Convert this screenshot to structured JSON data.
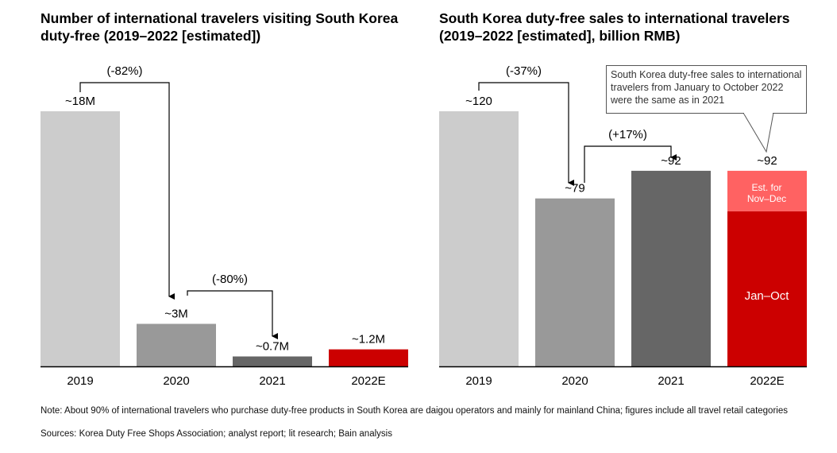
{
  "colors": {
    "bar_2019": "#cccccc",
    "bar_2020": "#999999",
    "bar_2021": "#666666",
    "bar_2022": "#cc0000",
    "bar_2022_estimate": "#ff6262",
    "axis": "#000000",
    "text": "#000000"
  },
  "chart_data": [
    {
      "type": "bar",
      "title": "Number of international travelers visiting South Korea duty-free (2019–2022 [estimated])",
      "xlabel": "",
      "ylabel": "",
      "unit": "million travelers",
      "grid": false,
      "ylim": [
        0,
        18
      ],
      "categories": [
        "2019",
        "2020",
        "2021",
        "2022E"
      ],
      "values": [
        18,
        3,
        0.7,
        1.2
      ],
      "data_labels": [
        "~18M",
        "~3M",
        "~0.7M",
        "~1.2M"
      ],
      "annotations": [
        {
          "from": "2019",
          "to": "2020",
          "label": "(-82%)"
        },
        {
          "from": "2020",
          "to": "2021",
          "label": "(-80%)"
        }
      ]
    },
    {
      "type": "bar",
      "stacked": true,
      "title": "South Korea duty-free sales to international travelers (2019–2022 [estimated], billion RMB)",
      "xlabel": "",
      "ylabel": "",
      "unit": "billion RMB",
      "grid": false,
      "ylim": [
        0,
        120
      ],
      "categories": [
        "2019",
        "2020",
        "2021",
        "2022E"
      ],
      "values": [
        120,
        79,
        92,
        92
      ],
      "data_labels": [
        "~120",
        "~79",
        "~92",
        "~92"
      ],
      "segments_2022E": [
        {
          "name": "Jan–Oct",
          "value": 73
        },
        {
          "name": "Est. for Nov–Dec",
          "value": 19
        }
      ],
      "segment_labels": {
        "jan_oct": "Jan–Oct",
        "nov_dec_line1": "Est. for",
        "nov_dec_line2": "Nov–Dec"
      },
      "annotations": [
        {
          "from": "2019",
          "to": "2020",
          "label": "(-37%)"
        },
        {
          "from": "2020",
          "to": "2021",
          "label": "(+17%)"
        }
      ],
      "callout": "South Korea duty-free sales to international travelers from January to October 2022 were the same as in 2021"
    }
  ],
  "footer": {
    "note": "Note: About 90% of international travelers who purchase duty-free products in South Korea are daigou operators and mainly for mainland China; figures include all travel retail categories",
    "sources": "Sources: Korea Duty Free Shops Association; analyst report; lit research; Bain analysis"
  }
}
